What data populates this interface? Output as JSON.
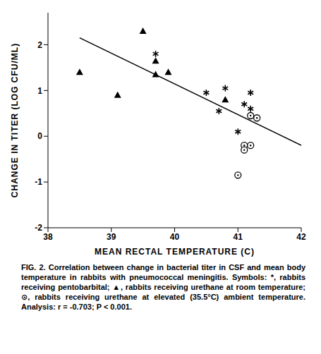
{
  "chart_data": {
    "type": "scatter",
    "x_label": "MEAN RECTAL TEMPERATURE (C)",
    "y_label": "CHANGE IN TITER (LOG CFU/ML)",
    "caption": "FIG. 2. Correlation between change in bacterial titer in CSF and mean body temperature in rabbits with pneumococcal meningitis. Symbols: *, rabbits receiving pentobarbital; ▲, rabbits receiving urethane at room temperature; ⊙, rabbits receiving urethane at elevated (35.5°C) ambient temperature. Analysis: r = -0.703; P < 0.001.",
    "xlim": [
      38,
      42
    ],
    "xticks": [
      38,
      39,
      40,
      41,
      42
    ],
    "ylim": [
      -2,
      2.7
    ],
    "yticks": [
      -2,
      -1,
      0,
      1,
      2
    ],
    "grid": false,
    "series": [
      {
        "marker": "asterisk",
        "color": "#000000",
        "x": [
          39.7,
          40.5,
          40.7,
          40.8,
          41.0,
          41.1,
          41.2,
          41.2
        ],
        "values": [
          1.8,
          0.95,
          0.55,
          1.05,
          0.1,
          0.7,
          0.95,
          0.6
        ]
      },
      {
        "marker": "triangle",
        "color": "#000000",
        "x": [
          38.5,
          39.1,
          39.5,
          39.7,
          39.7,
          39.9,
          40.8
        ],
        "values": [
          1.4,
          0.9,
          2.3,
          1.65,
          1.35,
          1.4,
          0.8
        ]
      },
      {
        "marker": "circle_dot",
        "color": "#000000",
        "x": [
          41.0,
          41.1,
          41.1,
          41.2,
          41.2,
          41.3
        ],
        "values": [
          -0.85,
          -0.2,
          -0.3,
          -0.2,
          0.45,
          0.4
        ]
      }
    ],
    "regression_line": {
      "color": "#000000",
      "x": [
        38.5,
        42
      ],
      "values": [
        2.15,
        -0.2
      ]
    }
  }
}
